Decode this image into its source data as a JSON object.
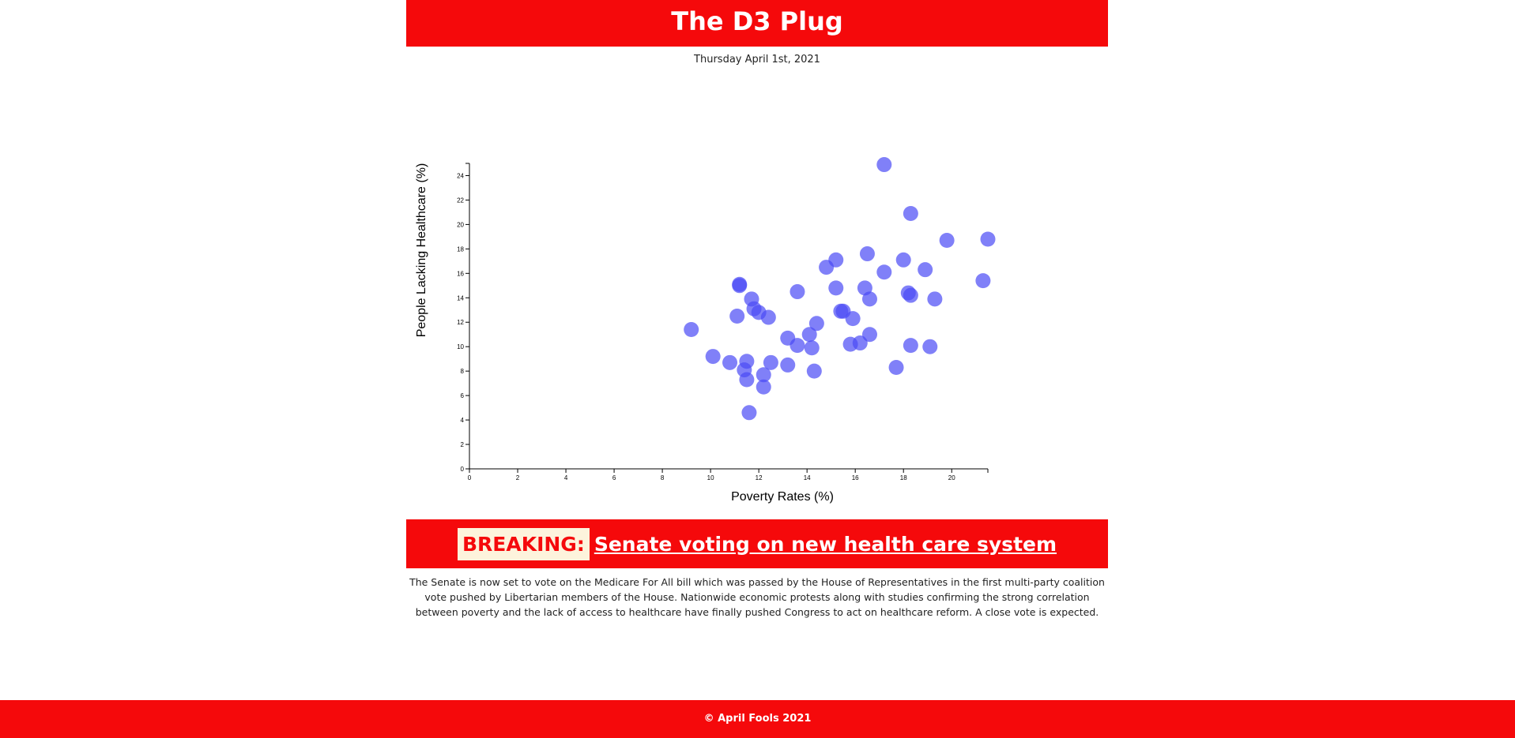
{
  "header": {
    "title": "The D3 Plug"
  },
  "date": "Thursday April 1st, 2021",
  "chart_data": {
    "type": "scatter",
    "xlabel": "Poverty Rates (%)",
    "ylabel": "People Lacking Healthcare (%)",
    "xlim": [
      0,
      21.5
    ],
    "ylim": [
      0,
      25
    ],
    "x_ticks": [
      0,
      2,
      4,
      6,
      8,
      10,
      12,
      14,
      16,
      18,
      20
    ],
    "y_ticks": [
      0,
      2,
      4,
      6,
      8,
      10,
      12,
      14,
      16,
      18,
      20,
      22,
      24
    ],
    "point_color": "#4a4af5",
    "points": [
      [
        17.2,
        24.9
      ],
      [
        18.3,
        20.9
      ],
      [
        19.8,
        18.7
      ],
      [
        21.5,
        18.8
      ],
      [
        16.5,
        17.6
      ],
      [
        15.2,
        17.1
      ],
      [
        18.0,
        17.1
      ],
      [
        14.8,
        16.5
      ],
      [
        18.9,
        16.3
      ],
      [
        17.2,
        16.1
      ],
      [
        21.3,
        15.4
      ],
      [
        11.2,
        15.1
      ],
      [
        11.2,
        15.0
      ],
      [
        15.2,
        14.8
      ],
      [
        16.4,
        14.8
      ],
      [
        13.6,
        14.5
      ],
      [
        18.2,
        14.4
      ],
      [
        18.3,
        14.2
      ],
      [
        11.7,
        13.9
      ],
      [
        16.6,
        13.9
      ],
      [
        19.3,
        13.9
      ],
      [
        11.8,
        13.1
      ],
      [
        15.4,
        12.9
      ],
      [
        15.5,
        12.9
      ],
      [
        12.0,
        12.8
      ],
      [
        11.1,
        12.5
      ],
      [
        12.4,
        12.4
      ],
      [
        15.9,
        12.3
      ],
      [
        14.4,
        11.9
      ],
      [
        9.2,
        11.4
      ],
      [
        14.1,
        11.0
      ],
      [
        16.6,
        11.0
      ],
      [
        13.2,
        10.7
      ],
      [
        15.8,
        10.2
      ],
      [
        16.2,
        10.3
      ],
      [
        13.6,
        10.1
      ],
      [
        14.2,
        9.9
      ],
      [
        18.3,
        10.1
      ],
      [
        19.1,
        10.0
      ],
      [
        10.1,
        9.2
      ],
      [
        10.8,
        8.7
      ],
      [
        11.5,
        8.8
      ],
      [
        12.5,
        8.7
      ],
      [
        13.2,
        8.5
      ],
      [
        17.7,
        8.3
      ],
      [
        11.4,
        8.1
      ],
      [
        14.3,
        8.0
      ],
      [
        12.2,
        7.7
      ],
      [
        11.5,
        7.3
      ],
      [
        12.2,
        6.7
      ],
      [
        11.6,
        4.6
      ]
    ]
  },
  "breaking": {
    "tag": "BREAKING:",
    "headline": " Senate voting on new health care system"
  },
  "article": {
    "text": "The Senate is now set to vote on the Medicare For All bill which was passed by the House of Representatives in the first multi-party coalition vote pushed by Libertarian members of the House. Nationwide economic protests along with studies confirming the strong correlation between poverty and the lack of access to healthcare have finally pushed Congress to act on healthcare reform. A close vote is expected."
  },
  "footer": {
    "text": "© April Fools 2021"
  }
}
